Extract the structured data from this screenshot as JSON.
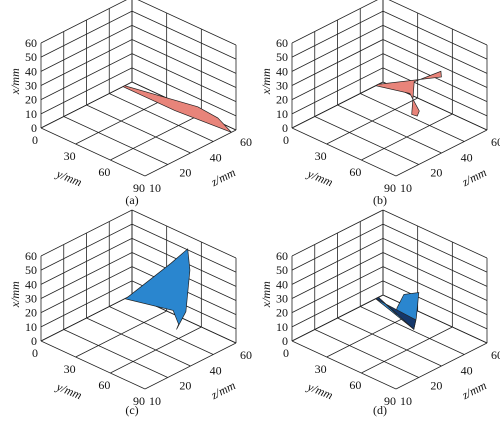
{
  "colors": {
    "salmon": "#e8847a",
    "blue": "#2a86cf",
    "dark_blue": "#15386b",
    "grid": "#222222"
  },
  "chart_data": [
    {
      "type": "surface3d",
      "caption": "(a)",
      "x_label": "x/mm",
      "y_label": "y/mm",
      "z_label": "z/mm",
      "x_ticks": [
        "0",
        "10",
        "20",
        "30",
        "40",
        "50",
        "60"
      ],
      "y_ticks": [
        "0",
        "30",
        "60",
        "90"
      ],
      "z_ticks": [
        "10",
        "20",
        "40",
        "60"
      ],
      "xlim": [
        0,
        60
      ],
      "ylim": [
        0,
        90
      ],
      "zlim": [
        10,
        60
      ],
      "color": "#e8847a",
      "polygons": [
        {
          "points": [
            [
              0,
              0,
              0.9
            ],
            [
              0,
              45,
              0.9
            ],
            [
              0,
              90,
              0.95
            ],
            [
              15,
              90,
              0.8
            ],
            [
              30,
              90,
              0.58
            ],
            [
              0,
              0,
              0.92
            ]
          ]
        }
      ]
    },
    {
      "type": "surface3d",
      "caption": "(b)",
      "x_label": "x/mm",
      "y_label": "y/mm",
      "z_label": "z/mm",
      "x_ticks": [
        "0",
        "10",
        "20",
        "30",
        "40",
        "50",
        "60"
      ],
      "y_ticks": [
        "0",
        "30",
        "60",
        "90"
      ],
      "z_ticks": [
        "10",
        "20",
        "40",
        "60"
      ],
      "xlim": [
        0,
        60
      ],
      "ylim": [
        0,
        90
      ],
      "zlim": [
        10,
        60
      ],
      "color": "#e8847a",
      "polygons": [
        {
          "points": [
            [
              0,
              0,
              0.92
            ],
            [
              10,
              35,
              0.85
            ],
            [
              10,
              55,
              0.7
            ],
            [
              15,
              65,
              0.55
            ],
            [
              30,
              80,
              0.3
            ],
            [
              60,
              90,
              0.2
            ],
            [
              50,
              80,
              0.62
            ],
            [
              30,
              60,
              0.88
            ],
            [
              0,
              0,
              0.95
            ]
          ]
        }
      ]
    },
    {
      "type": "surface3d",
      "caption": "(c)",
      "x_label": "x/mm",
      "y_label": "y/mm",
      "z_label": "z/mm",
      "x_ticks": [
        "0",
        "10",
        "20",
        "30",
        "40",
        "50",
        "60"
      ],
      "y_ticks": [
        "0",
        "30",
        "60",
        "90"
      ],
      "z_ticks": [
        "10",
        "20",
        "40",
        "60"
      ],
      "xlim": [
        0,
        60
      ],
      "ylim": [
        0,
        90
      ],
      "zlim": [
        10,
        60
      ],
      "color": "#2a86cf",
      "polygons": [
        {
          "points": [
            [
              0,
              0,
              0.92
            ],
            [
              10,
              45,
              0.88
            ],
            [
              10,
              60,
              0.75
            ],
            [
              15,
              70,
              0.6
            ],
            [
              40,
              90,
              0.45
            ],
            [
              60,
              80,
              0.62
            ],
            [
              60,
              60,
              0.85
            ],
            [
              40,
              40,
              0.92
            ],
            [
              0,
              0,
              0.95
            ]
          ]
        }
      ]
    },
    {
      "type": "surface3d",
      "caption": "(d)",
      "x_label": "x/mm",
      "y_label": "y/mm",
      "z_label": "z/mm",
      "x_ticks": [
        "0",
        "10",
        "20",
        "30",
        "40",
        "50",
        "60"
      ],
      "y_ticks": [
        "0",
        "30",
        "60",
        "90"
      ],
      "z_ticks": [
        "10",
        "20",
        "40",
        "60"
      ],
      "xlim": [
        0,
        60
      ],
      "ylim": [
        0,
        90
      ],
      "zlim": [
        10,
        60
      ],
      "color": "#2a86cf",
      "polygons": [
        {
          "points": [
            [
              0,
              0,
              0.92
            ],
            [
              20,
              70,
              0.45
            ],
            [
              35,
              80,
              0.35
            ],
            [
              60,
              90,
              0.25
            ],
            [
              60,
              85,
              0.15
            ],
            [
              45,
              75,
              0.2
            ],
            [
              25,
              55,
              0.45
            ],
            [
              0,
              0,
              0.95
            ]
          ],
          "color": "#2a86cf"
        },
        {
          "points": [
            [
              0,
              0,
              0.92
            ],
            [
              18,
              60,
              0.6
            ],
            [
              20,
              70,
              0.45
            ],
            [
              0,
              0,
              0.95
            ]
          ],
          "color": "#15386b"
        }
      ]
    }
  ]
}
